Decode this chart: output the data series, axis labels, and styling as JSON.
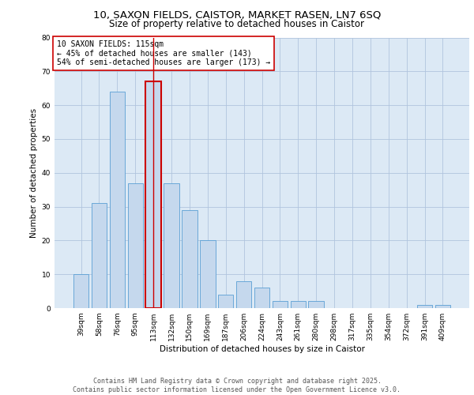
{
  "title_line1": "10, SAXON FIELDS, CAISTOR, MARKET RASEN, LN7 6SQ",
  "title_line2": "Size of property relative to detached houses in Caistor",
  "xlabel": "Distribution of detached houses by size in Caistor",
  "ylabel": "Number of detached properties",
  "categories": [
    "39sqm",
    "58sqm",
    "76sqm",
    "95sqm",
    "113sqm",
    "132sqm",
    "150sqm",
    "169sqm",
    "187sqm",
    "206sqm",
    "224sqm",
    "243sqm",
    "261sqm",
    "280sqm",
    "298sqm",
    "317sqm",
    "335sqm",
    "354sqm",
    "372sqm",
    "391sqm",
    "409sqm"
  ],
  "values": [
    10,
    31,
    64,
    37,
    67,
    37,
    29,
    20,
    4,
    8,
    6,
    2,
    2,
    2,
    0,
    0,
    0,
    0,
    0,
    1,
    1
  ],
  "bar_color": "#c5d8ed",
  "bar_edge_color": "#5a9fd4",
  "highlight_bar_index": 4,
  "highlight_bar_edge_color": "#cc0000",
  "annotation_text": "10 SAXON FIELDS: 115sqm\n← 45% of detached houses are smaller (143)\n54% of semi-detached houses are larger (173) →",
  "annotation_box_edge_color": "#cc0000",
  "annotation_fontsize": 7.0,
  "grid_color": "#b0c4de",
  "background_color": "#dce9f5",
  "ylim": [
    0,
    80
  ],
  "yticks": [
    0,
    10,
    20,
    30,
    40,
    50,
    60,
    70,
    80
  ],
  "footer_text": "Contains HM Land Registry data © Crown copyright and database right 2025.\nContains public sector information licensed under the Open Government Licence v3.0.",
  "title_fontsize": 9.5,
  "subtitle_fontsize": 8.5,
  "axis_label_fontsize": 7.5,
  "tick_fontsize": 6.5,
  "footer_fontsize": 6.0
}
